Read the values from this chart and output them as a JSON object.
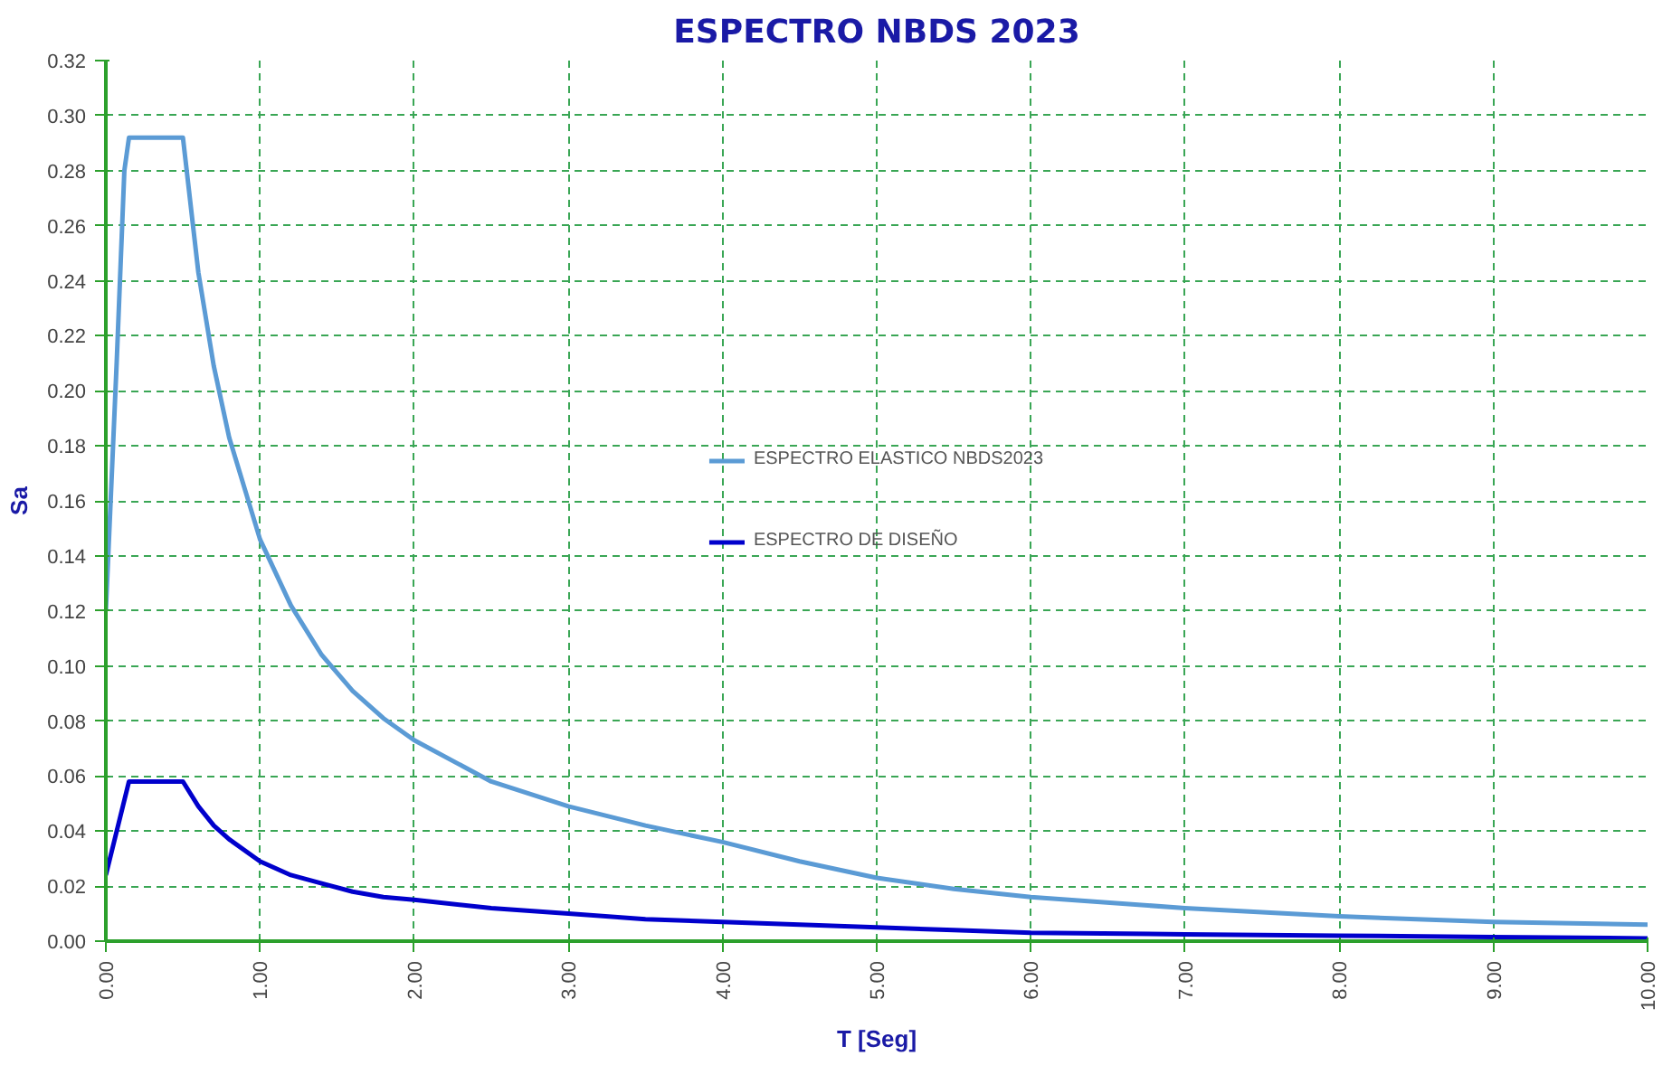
{
  "chart_data": {
    "type": "line",
    "title": "ESPECTRO NBDS 2023",
    "xlabel": "T [Seg]",
    "ylabel": "Sa",
    "xlim": [
      0,
      10
    ],
    "ylim": [
      0,
      0.32
    ],
    "xticks": [
      {
        "value": 0,
        "label": "0.00"
      },
      {
        "value": 1,
        "label": "1.00"
      },
      {
        "value": 2,
        "label": "2.00"
      },
      {
        "value": 3,
        "label": "3.00"
      },
      {
        "value": 4,
        "label": "4.00"
      },
      {
        "value": 5,
        "label": "5.00"
      },
      {
        "value": 6,
        "label": "6.00"
      },
      {
        "value": 7,
        "label": "7.00"
      },
      {
        "value": 8,
        "label": "8.00"
      },
      {
        "value": 9,
        "label": "9.00"
      },
      {
        "value": 10,
        "label": "10.00"
      }
    ],
    "yticks": [
      {
        "value": 0,
        "label": "0.00"
      },
      {
        "value": 0.02,
        "label": "0.02"
      },
      {
        "value": 0.04,
        "label": "0.04"
      },
      {
        "value": 0.06,
        "label": "0.06"
      },
      {
        "value": 0.08,
        "label": "0.08"
      },
      {
        "value": 0.1,
        "label": "0.10"
      },
      {
        "value": 0.12,
        "label": "0.12"
      },
      {
        "value": 0.14,
        "label": "0.14"
      },
      {
        "value": 0.16,
        "label": "0.16"
      },
      {
        "value": 0.18,
        "label": "0.18"
      },
      {
        "value": 0.2,
        "label": "0.20"
      },
      {
        "value": 0.22,
        "label": "0.22"
      },
      {
        "value": 0.24,
        "label": "0.24"
      },
      {
        "value": 0.26,
        "label": "0.26"
      },
      {
        "value": 0.28,
        "label": "0.28"
      },
      {
        "value": 0.3,
        "label": "0.30"
      },
      {
        "value": 0.32,
        "label": "0.32"
      }
    ],
    "grid": true,
    "legend": "center",
    "line_style": "solid",
    "series": [
      {
        "name": "ESPECTRO ELASTICO NBDS2023",
        "color": "#5b9bd5",
        "x": [
          0,
          0.07,
          0.12,
          0.15,
          0.5,
          0.6,
          0.7,
          0.8,
          1.0,
          1.2,
          1.4,
          1.6,
          1.8,
          2.0,
          2.5,
          3,
          3.5,
          4,
          4.5,
          5,
          5.5,
          6,
          7,
          8,
          9,
          10
        ],
        "values": [
          0.12,
          0.21,
          0.28,
          0.292,
          0.292,
          0.243,
          0.209,
          0.183,
          0.146,
          0.122,
          0.104,
          0.091,
          0.081,
          0.073,
          0.058,
          0.049,
          0.042,
          0.036,
          0.029,
          0.023,
          0.019,
          0.016,
          0.012,
          0.009,
          0.007,
          0.006
        ]
      },
      {
        "name": "ESPECTRO DE DISEÑO",
        "color": "#0000cc",
        "x": [
          0,
          0.15,
          0.5,
          0.6,
          0.7,
          0.8,
          1.0,
          1.2,
          1.4,
          1.6,
          1.8,
          2.0,
          2.5,
          3,
          3.5,
          4,
          4.5,
          5,
          5.5,
          6,
          7,
          8,
          9,
          10
        ],
        "values": [
          0.024,
          0.058,
          0.058,
          0.049,
          0.042,
          0.037,
          0.029,
          0.024,
          0.021,
          0.018,
          0.016,
          0.015,
          0.012,
          0.01,
          0.008,
          0.007,
          0.006,
          0.005,
          0.004,
          0.003,
          0.0025,
          0.002,
          0.0015,
          0.001
        ]
      }
    ]
  }
}
